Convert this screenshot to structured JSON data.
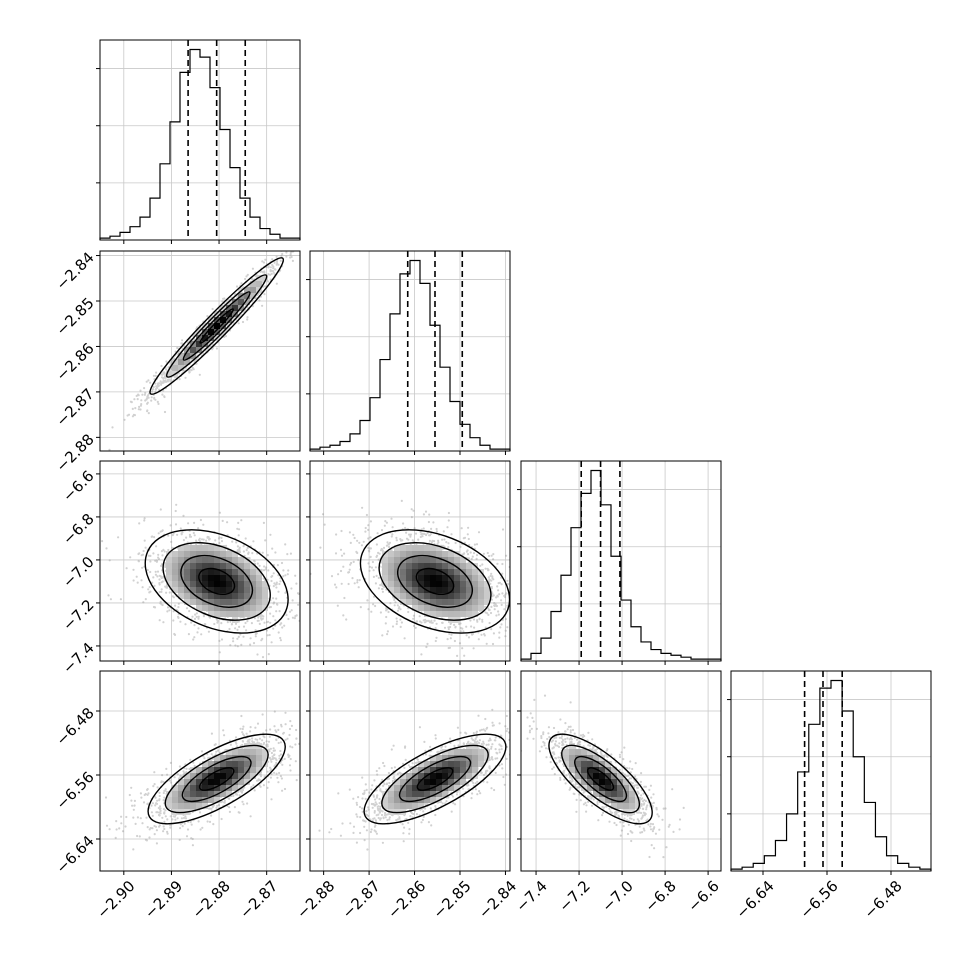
{
  "chart_data": {
    "type": "corner",
    "title": "",
    "grid": true,
    "variables": [
      {
        "index": 0,
        "range": [
          -2.905,
          -2.863
        ],
        "median": -2.8805,
        "q16": -2.8865,
        "q84": -2.8745,
        "ticks": [
          -2.9,
          -2.89,
          -2.88,
          -2.87
        ],
        "tick_labels": [
          "−2.90",
          "−2.89",
          "−2.88",
          "−2.87"
        ]
      },
      {
        "index": 1,
        "range": [
          -2.883,
          -2.839
        ],
        "median": -2.8555,
        "q16": -2.8615,
        "q84": -2.8495,
        "ticks": [
          -2.88,
          -2.87,
          -2.86,
          -2.85,
          -2.84
        ],
        "tick_labels": [
          "−2.88",
          "−2.87",
          "−2.86",
          "−2.85",
          "−2.84"
        ]
      },
      {
        "index": 2,
        "range": [
          -7.47,
          -6.54
        ],
        "median": -7.1,
        "q16": -7.19,
        "q84": -7.01,
        "ticks": [
          -7.4,
          -7.2,
          -7.0,
          -6.8,
          -6.6
        ],
        "tick_labels": [
          "−7.4",
          "−7.2",
          "−7.0",
          "−6.8",
          "−6.6"
        ]
      },
      {
        "index": 3,
        "range": [
          -6.68,
          -6.43
        ],
        "median": -6.565,
        "q16": -6.588,
        "q84": -6.541,
        "ticks": [
          -6.64,
          -6.56,
          -6.48
        ],
        "tick_labels": [
          "−6.64",
          "−6.56",
          "−6.48"
        ]
      }
    ],
    "histograms": [
      {
        "var": 0,
        "counts": [
          1,
          2,
          4,
          7,
          12,
          22,
          40,
          62,
          88,
          100,
          96,
          80,
          58,
          38,
          22,
          12,
          6,
          3,
          1,
          1
        ]
      },
      {
        "var": 1,
        "counts": [
          1,
          2,
          3,
          5,
          9,
          16,
          28,
          48,
          72,
          93,
          100,
          88,
          66,
          44,
          26,
          14,
          7,
          3,
          1,
          1
        ]
      },
      {
        "var": 2,
        "counts": [
          1,
          4,
          12,
          26,
          45,
          70,
          88,
          100,
          82,
          55,
          32,
          18,
          10,
          6,
          4,
          3,
          2,
          1,
          1,
          1
        ]
      },
      {
        "var": 3,
        "counts": [
          1,
          2,
          4,
          8,
          16,
          30,
          52,
          77,
          96,
          100,
          84,
          60,
          36,
          18,
          8,
          4,
          2,
          1
        ]
      }
    ],
    "pairs": [
      {
        "x": 0,
        "y": 1,
        "mean": [
          -2.8805,
          -2.8555
        ],
        "sd": [
          0.007,
          0.0075
        ],
        "rho": 0.97
      },
      {
        "x": 0,
        "y": 2,
        "mean": [
          -2.8805,
          -7.1
        ],
        "sd": [
          0.0075,
          0.12
        ],
        "rho": -0.35
      },
      {
        "x": 1,
        "y": 2,
        "mean": [
          -2.8555,
          -7.1
        ],
        "sd": [
          0.0082,
          0.12
        ],
        "rho": -0.35
      },
      {
        "x": 0,
        "y": 3,
        "mean": [
          -2.8805,
          -6.565
        ],
        "sd": [
          0.0072,
          0.028
        ],
        "rho": 0.72
      },
      {
        "x": 1,
        "y": 3,
        "mean": [
          -2.8555,
          -6.565
        ],
        "sd": [
          0.0078,
          0.028
        ],
        "rho": 0.72
      },
      {
        "x": 2,
        "y": 3,
        "mean": [
          -7.1,
          -6.565
        ],
        "sd": [
          0.12,
          0.028
        ],
        "rho": -0.75
      }
    ],
    "contour_levels_sigma": [
      0.5,
      1.0,
      1.5,
      2.0
    ]
  }
}
